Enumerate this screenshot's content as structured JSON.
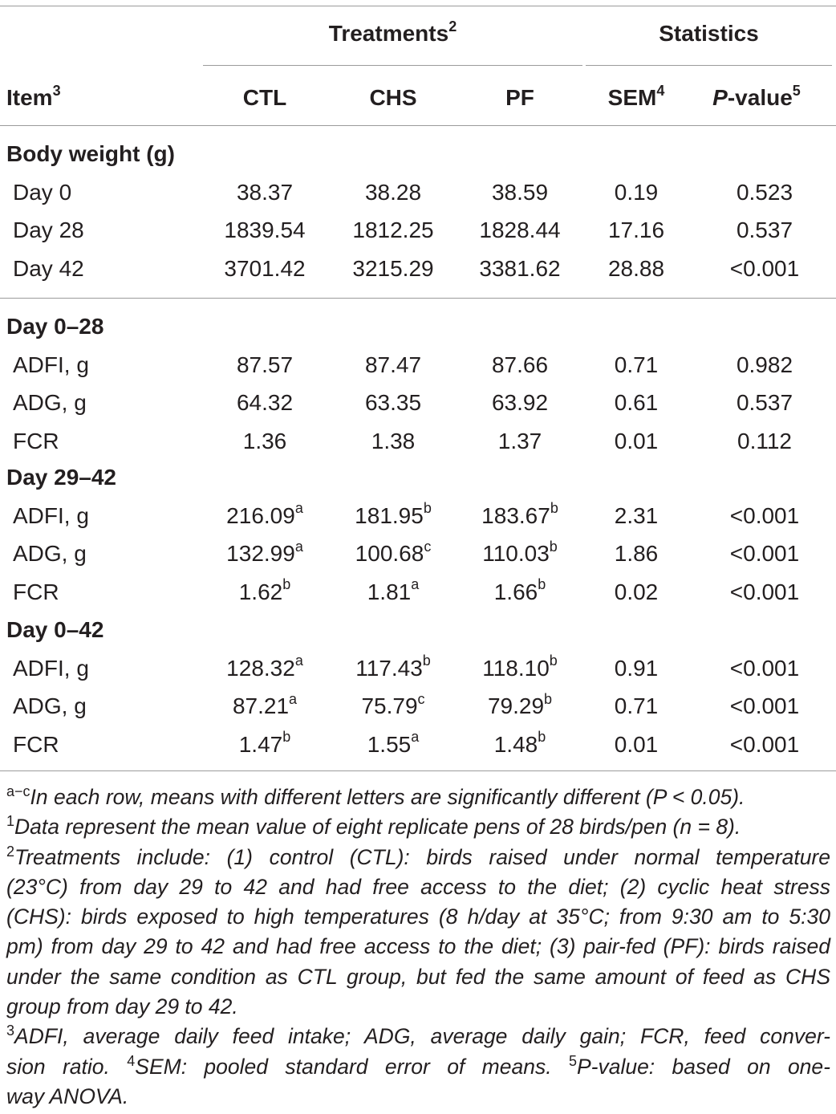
{
  "header": {
    "treatments_label": "Treatments",
    "treatments_sup": "2",
    "statistics_label": "Statistics",
    "item_label": "Item",
    "item_sup": "3",
    "col_ctl": "CTL",
    "col_chs": "CHS",
    "col_pf": "PF",
    "col_sem": "SEM",
    "col_sem_sup": "4",
    "col_p_italic": "P",
    "col_p_rest": "-value",
    "col_p_sup": "5"
  },
  "sections": [
    {
      "title": "Body weight (g)",
      "rows": [
        {
          "item": "Day 0",
          "ctl": "38.37",
          "ctl_sup": "",
          "chs": "38.28",
          "chs_sup": "",
          "pf": "38.59",
          "pf_sup": "",
          "sem": "0.19",
          "p": "0.523"
        },
        {
          "item": "Day 28",
          "ctl": "1839.54",
          "ctl_sup": "",
          "chs": "1812.25",
          "chs_sup": "",
          "pf": "1828.44",
          "pf_sup": "",
          "sem": "17.16",
          "p": "0.537"
        },
        {
          "item": "Day 42",
          "ctl": "3701.42",
          "ctl_sup": "",
          "chs": "3215.29",
          "chs_sup": "",
          "pf": "3381.62",
          "pf_sup": "",
          "sem": "28.88",
          "p": "<0.001"
        }
      ]
    },
    {
      "title": "Day 0–28",
      "rows": [
        {
          "item": "ADFI, g",
          "ctl": "87.57",
          "ctl_sup": "",
          "chs": "87.47",
          "chs_sup": "",
          "pf": "87.66",
          "pf_sup": "",
          "sem": "0.71",
          "p": "0.982"
        },
        {
          "item": "ADG, g",
          "ctl": "64.32",
          "ctl_sup": "",
          "chs": "63.35",
          "chs_sup": "",
          "pf": "63.92",
          "pf_sup": "",
          "sem": "0.61",
          "p": "0.537"
        },
        {
          "item": "FCR",
          "ctl": "1.36",
          "ctl_sup": "",
          "chs": "1.38",
          "chs_sup": "",
          "pf": "1.37",
          "pf_sup": "",
          "sem": "0.01",
          "p": "0.112"
        }
      ]
    },
    {
      "title": "Day 29–42",
      "rows": [
        {
          "item": "ADFI, g",
          "ctl": "216.09",
          "ctl_sup": "a",
          "chs": "181.95",
          "chs_sup": "b",
          "pf": "183.67",
          "pf_sup": "b",
          "sem": "2.31",
          "p": "<0.001"
        },
        {
          "item": "ADG, g",
          "ctl": "132.99",
          "ctl_sup": "a",
          "chs": "100.68",
          "chs_sup": "c",
          "pf": "110.03",
          "pf_sup": "b",
          "sem": "1.86",
          "p": "<0.001"
        },
        {
          "item": "FCR",
          "ctl": "1.62",
          "ctl_sup": "b",
          "chs": "1.81",
          "chs_sup": "a",
          "pf": "1.66",
          "pf_sup": "b",
          "sem": "0.02",
          "p": "<0.001"
        }
      ]
    },
    {
      "title": "Day 0–42",
      "rows": [
        {
          "item": "ADFI, g",
          "ctl": "128.32",
          "ctl_sup": "a",
          "chs": "117.43",
          "chs_sup": "b",
          "pf": "118.10",
          "pf_sup": "b",
          "sem": "0.91",
          "p": "<0.001"
        },
        {
          "item": "ADG, g",
          "ctl": "87.21",
          "ctl_sup": "a",
          "chs": "75.79",
          "chs_sup": "c",
          "pf": "79.29",
          "pf_sup": "b",
          "sem": "0.71",
          "p": "<0.001"
        },
        {
          "item": "FCR",
          "ctl": "1.47",
          "ctl_sup": "b",
          "chs": "1.55",
          "chs_sup": "a",
          "pf": "1.48",
          "pf_sup": "b",
          "sem": "0.01",
          "p": "<0.001"
        }
      ]
    }
  ],
  "footnotes": {
    "fn_ac_sup": "a−c",
    "fn_ac_text": "In each row, means with different letters are significantly different (P < 0.05).",
    "fn1_sup": "1",
    "fn1_text": "Data represent the mean value of eight replicate pens of 28 birds/pen (n = 8).",
    "fn2_sup": "2",
    "fn2_lines": [
      "Treatments include: (1) control (CTL): birds raised under normal temperature",
      "(23°C) from day 29 to 42 and had free access to the diet; (2) cyclic heat stress",
      "(CHS): birds exposed to high temperatures (8 h/day at 35°C; from 9:30 am to 5:30",
      "pm) from day 29 to 42 and had free access to the diet; (3) pair-fed (PF): birds raised",
      "under the same condition as CTL group, but fed the same amount of feed as CHS",
      "group from day 29 to 42."
    ],
    "fn3_sup": "3",
    "fn3_line1": "ADFI, average daily feed intake; ADG, average daily gain; FCR, feed conver-",
    "fn3_line2a": "sion ratio. ",
    "fn4_sup": "4",
    "fn3_line2b": "SEM: pooled standard error of means. ",
    "fn5_sup": "5",
    "fn3_line2c": "P-value: based on one-",
    "fn3_line3": "way ANOVA."
  }
}
